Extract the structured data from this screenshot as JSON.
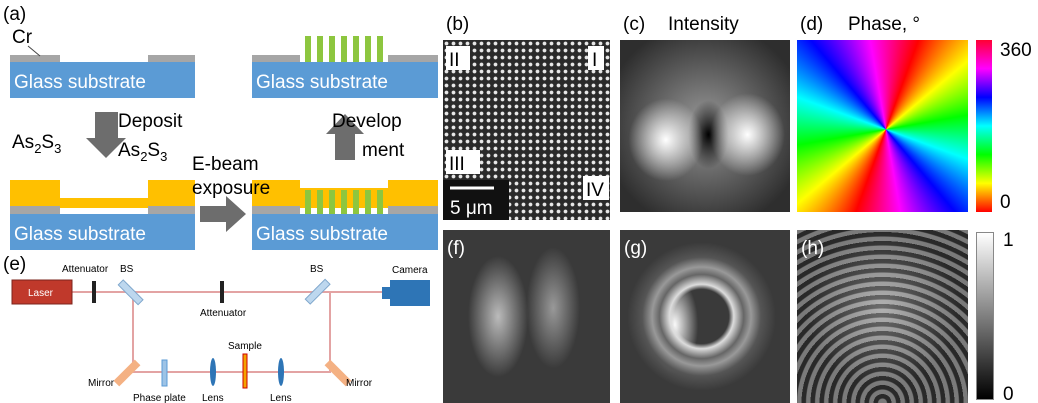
{
  "panel_a": {
    "label": "(a)",
    "cr": "Cr",
    "substrates": [
      "Glass substrate",
      "Glass substrate",
      "Glass substrate",
      "Glass substrate"
    ],
    "deposit": "Deposit",
    "material": [
      "As",
      "2",
      "S",
      "3"
    ],
    "exposure": [
      "E-beam",
      "exposure"
    ],
    "development": [
      "Develop",
      "ment"
    ]
  },
  "panel_b": {
    "label": "(b)",
    "quadrants": [
      "II",
      "I",
      "III",
      "IV"
    ],
    "scale_bar": "5 μm"
  },
  "panel_c": {
    "label": "(c)",
    "title": "Intensity"
  },
  "panel_d": {
    "label": "(d)",
    "title": "Phase, °",
    "colorbar_ticks": [
      360,
      0
    ]
  },
  "panel_e": {
    "label": "(e)",
    "laser": "Laser",
    "attenuators": [
      "Attenuator",
      "Attenuator"
    ],
    "beam_splitters": [
      "BS",
      "BS"
    ],
    "camera": "Camera",
    "sample": "Sample",
    "mirrors": [
      "Mirror",
      "Mirror"
    ],
    "phase_plate": "Phase plate",
    "lenses": [
      "Lens",
      "Lens"
    ]
  },
  "panels_fgh": {
    "labels": [
      "(f)",
      "(g)",
      "(h)"
    ],
    "colorbar_ticks": [
      1,
      0
    ]
  }
}
